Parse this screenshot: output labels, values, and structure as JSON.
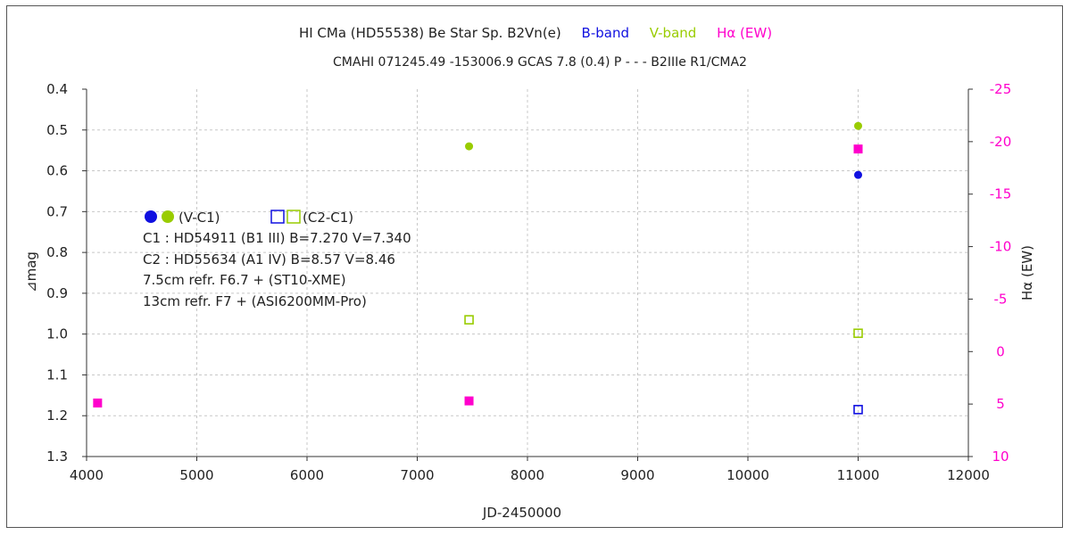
{
  "chart_data": {
    "type": "scatter",
    "title": {
      "prefix": "HI CMa (HD55538)    Be Star    Sp. B2Vn(e)",
      "b_band": "B-band",
      "v_band": "V-band",
      "ha": "Hα (EW)"
    },
    "subtitle": "CMAHI 071245.49 -153006.9 GCAS 7.8 (0.4) P - - - B2IIIe R1/CMA2",
    "xlabel": "JD-2450000",
    "ylabel_left": "⊿mag",
    "ylabel_right": "Hα (EW)",
    "xlim": [
      4000,
      12000
    ],
    "xticks": [
      4000,
      5000,
      6000,
      7000,
      8000,
      9000,
      10000,
      11000,
      12000
    ],
    "ylim_left": [
      0.4,
      1.3
    ],
    "yticks_left": [
      "0.4",
      "0.5",
      "0.6",
      "0.7",
      "0.8",
      "0.9",
      "1.0",
      "1.1",
      "1.2",
      "1.3"
    ],
    "left_axis_inverted": true,
    "ylim_right": [
      -25,
      10
    ],
    "yticks_right": [
      "-25",
      "-20",
      "-15",
      "-10",
      "-5",
      "0",
      "5",
      "10"
    ],
    "grid": true,
    "series": [
      {
        "axis": "left",
        "color": "#1010e0",
        "marker": "filled-circle",
        "points": [
          {
            "x": 11000,
            "y": 0.61
          }
        ]
      },
      {
        "axis": "left",
        "color": "#99cc00",
        "marker": "filled-circle",
        "points": [
          {
            "x": 7470,
            "y": 0.54
          },
          {
            "x": 11000,
            "y": 0.49
          }
        ]
      },
      {
        "axis": "left",
        "color": "#1010e0",
        "marker": "open-square",
        "points": [
          {
            "x": 11000,
            "y": 1.185
          }
        ]
      },
      {
        "axis": "left",
        "color": "#99cc00",
        "marker": "open-square",
        "points": [
          {
            "x": 7470,
            "y": 0.965
          },
          {
            "x": 11000,
            "y": 0.998
          }
        ]
      },
      {
        "axis": "right",
        "color": "#ff00cc",
        "marker": "filled-square",
        "points": [
          {
            "x": 4100,
            "y": 4.9
          },
          {
            "x": 7470,
            "y": 4.7
          },
          {
            "x": 11000,
            "y": -19.3
          }
        ]
      }
    ],
    "legend": {
      "vc1_label": "(V-C1)",
      "c2c1_label": "(C2-C1)"
    },
    "notes": [
      "C1 : HD54911 (B1 III)   B=7.270  V=7.340",
      "C2 : HD55634 (A1 IV)   B=8.57  V=8.46",
      "7.5cm refr. F6.7  +  (ST10-XME)",
      "13cm refr.  F7   +  (ASI6200MM-Pro)"
    ],
    "colors": {
      "b_band": "#1010e0",
      "v_band": "#99cc00",
      "ha": "#ff00cc"
    }
  }
}
